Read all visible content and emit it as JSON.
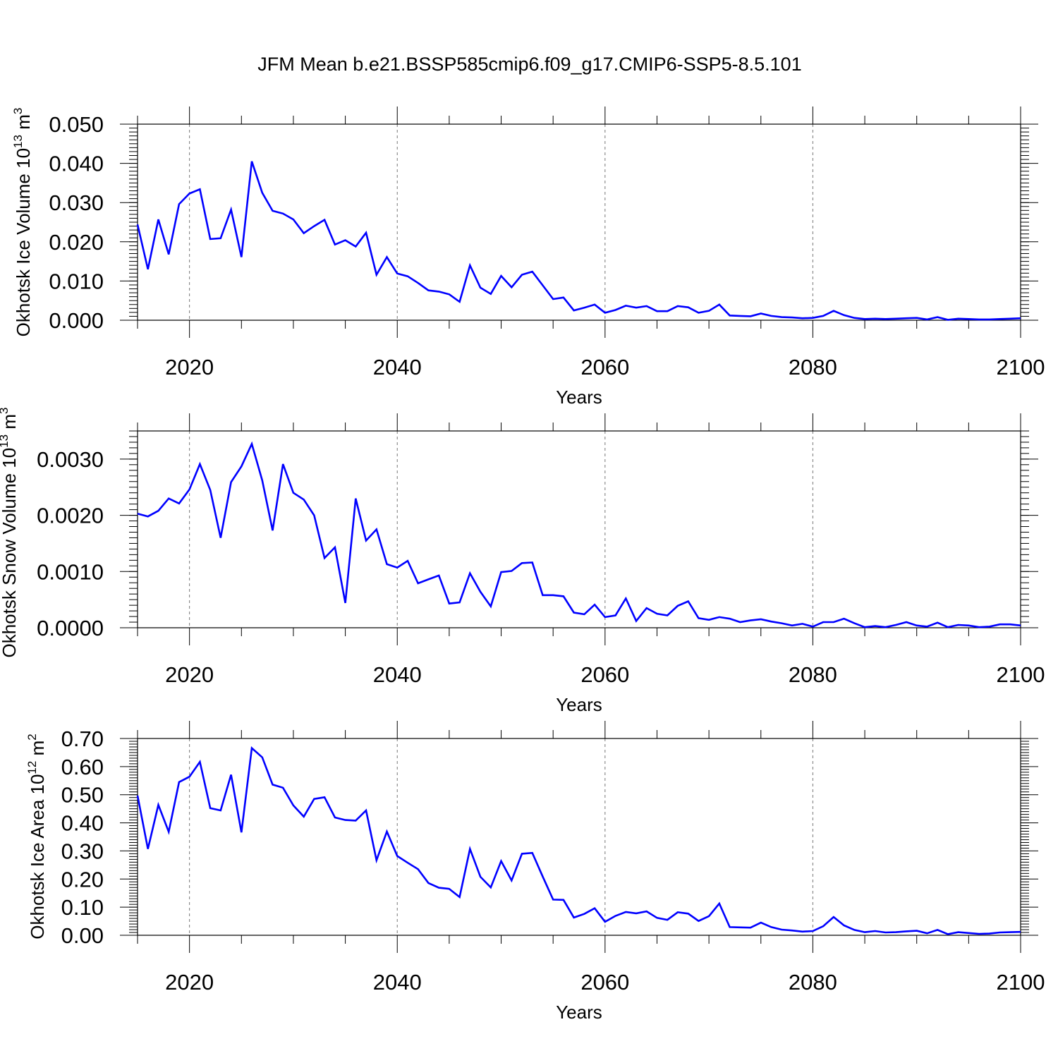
{
  "title": "JFM Mean b.e21.BSSP585cmip6.f09_g17.CMIP6-SSP5-8.5.101",
  "chart_data": [
    {
      "type": "line",
      "xlabel": "Years",
      "ylabel": "Okhotsk Ice Volume 10",
      "ylabel_exp": "13",
      "ylabel_unit": " m",
      "ylabel_unit_exp": "3",
      "xlim": [
        2015,
        2100
      ],
      "ylim": [
        0,
        0.05
      ],
      "xticks": [
        "2020",
        "2040",
        "2060",
        "2080",
        "2100"
      ],
      "yticks": [
        "0.000",
        "0.010",
        "0.020",
        "0.030",
        "0.040",
        "0.050"
      ],
      "grid": "dashed vertical at major x ticks",
      "series": [
        {
          "name": "Okhotsk Ice Volume",
          "color": "#0000ff",
          "x": [
            2015,
            2016,
            2017,
            2018,
            2019,
            2020,
            2021,
            2022,
            2023,
            2024,
            2025,
            2026,
            2027,
            2028,
            2029,
            2030,
            2031,
            2032,
            2033,
            2034,
            2035,
            2036,
            2037,
            2038,
            2039,
            2040,
            2041,
            2042,
            2043,
            2044,
            2045,
            2046,
            2047,
            2048,
            2049,
            2050,
            2051,
            2052,
            2053,
            2054,
            2055,
            2056,
            2057,
            2058,
            2059,
            2060,
            2061,
            2062,
            2063,
            2064,
            2065,
            2066,
            2067,
            2068,
            2069,
            2070,
            2071,
            2072,
            2073,
            2074,
            2075,
            2076,
            2077,
            2078,
            2079,
            2080,
            2081,
            2082,
            2083,
            2084,
            2085,
            2086,
            2087,
            2088,
            2089,
            2090,
            2091,
            2092,
            2093,
            2094,
            2095,
            2096,
            2097,
            2098,
            2099,
            2100
          ],
          "values": [
            0.0244,
            0.013,
            0.0257,
            0.0168,
            0.0296,
            0.0323,
            0.0334,
            0.0207,
            0.0209,
            0.0282,
            0.0161,
            0.0405,
            0.0325,
            0.0279,
            0.0272,
            0.0257,
            0.0222,
            0.024,
            0.0256,
            0.0193,
            0.0204,
            0.0188,
            0.0223,
            0.0116,
            0.0161,
            0.0119,
            0.0112,
            0.0095,
            0.0076,
            0.0073,
            0.0066,
            0.0047,
            0.014,
            0.0083,
            0.0067,
            0.0113,
            0.0084,
            0.0116,
            0.0124,
            0.0089,
            0.0054,
            0.0058,
            0.0025,
            0.0032,
            0.004,
            0.0019,
            0.0026,
            0.0037,
            0.0032,
            0.0036,
            0.0023,
            0.0023,
            0.0036,
            0.0033,
            0.0019,
            0.0024,
            0.004,
            0.0012,
            0.0011,
            0.001,
            0.0017,
            0.0011,
            0.0008,
            0.0007,
            0.0005,
            0.0006,
            0.0011,
            0.0024,
            0.0013,
            0.0006,
            0.0003,
            0.0004,
            0.0003,
            0.0004,
            0.0005,
            0.0006,
            0.0002,
            0.0008,
            0.0001,
            0.0004,
            0.0003,
            0.0002,
            0.0002,
            0.0003,
            0.0004,
            0.0005
          ]
        }
      ]
    },
    {
      "type": "line",
      "xlabel": "Years",
      "ylabel": "Okhotsk Snow Volume 10",
      "ylabel_exp": "13",
      "ylabel_unit": " m",
      "ylabel_unit_exp": "3",
      "xlim": [
        2015,
        2100
      ],
      "ylim": [
        0,
        0.0035
      ],
      "xticks": [
        "2020",
        "2040",
        "2060",
        "2080",
        "2100"
      ],
      "yticks": [
        "0.0000",
        "0.0010",
        "0.0020",
        "0.0030"
      ],
      "grid": "dashed vertical at major x ticks",
      "series": [
        {
          "name": "Okhotsk Snow Volume",
          "color": "#0000ff",
          "x": [
            2015,
            2016,
            2017,
            2018,
            2019,
            2020,
            2021,
            2022,
            2023,
            2024,
            2025,
            2026,
            2027,
            2028,
            2029,
            2030,
            2031,
            2032,
            2033,
            2034,
            2035,
            2036,
            2037,
            2038,
            2039,
            2040,
            2041,
            2042,
            2043,
            2044,
            2045,
            2046,
            2047,
            2048,
            2049,
            2050,
            2051,
            2052,
            2053,
            2054,
            2055,
            2056,
            2057,
            2058,
            2059,
            2060,
            2061,
            2062,
            2063,
            2064,
            2065,
            2066,
            2067,
            2068,
            2069,
            2070,
            2071,
            2072,
            2073,
            2074,
            2075,
            2076,
            2077,
            2078,
            2079,
            2080,
            2081,
            2082,
            2083,
            2084,
            2085,
            2086,
            2087,
            2088,
            2089,
            2090,
            2091,
            2092,
            2093,
            2094,
            2095,
            2096,
            2097,
            2098,
            2099,
            2100
          ],
          "values": [
            0.00203,
            0.00198,
            0.00208,
            0.0023,
            0.00221,
            0.00246,
            0.00291,
            0.00245,
            0.0016,
            0.00259,
            0.00287,
            0.00327,
            0.00262,
            0.00173,
            0.00291,
            0.0024,
            0.00228,
            0.002,
            0.00124,
            0.00143,
            0.00044,
            0.0023,
            0.00155,
            0.00175,
            0.00113,
            0.00107,
            0.00119,
            0.00079,
            0.00086,
            0.00093,
            0.00043,
            0.00045,
            0.00097,
            0.00064,
            0.00038,
            0.00099,
            0.00101,
            0.00115,
            0.00116,
            0.00058,
            0.00058,
            0.00056,
            0.00027,
            0.00024,
            0.00041,
            0.00019,
            0.00022,
            0.00052,
            0.00012,
            0.00035,
            0.00025,
            0.00022,
            0.00039,
            0.00047,
            0.00017,
            0.00014,
            0.00019,
            0.00016,
            0.0001,
            0.00013,
            0.00015,
            0.00011,
            8e-05,
            4e-05,
            7e-05,
            2e-05,
            0.0001,
            0.0001,
            0.00016,
            8e-05,
            1e-05,
            3e-05,
            1e-05,
            5e-05,
            0.0001,
            4e-05,
            2e-05,
            9e-05,
            1e-05,
            5e-05,
            4e-05,
            1e-05,
            2e-05,
            6e-05,
            6e-05,
            4e-05
          ]
        }
      ]
    },
    {
      "type": "line",
      "xlabel": "Years",
      "ylabel": "Okhotsk Ice Area 10",
      "ylabel_exp": "12",
      "ylabel_unit": " m",
      "ylabel_unit_exp": "2",
      "xlim": [
        2015,
        2100
      ],
      "ylim": [
        0,
        0.7
      ],
      "xticks": [
        "2020",
        "2040",
        "2060",
        "2080",
        "2100"
      ],
      "yticks": [
        "0.00",
        "0.10",
        "0.20",
        "0.30",
        "0.40",
        "0.50",
        "0.60",
        "0.70"
      ],
      "grid": "dashed vertical at major x ticks",
      "series": [
        {
          "name": "Okhotsk Ice Area",
          "color": "#0000ff",
          "x": [
            2015,
            2016,
            2017,
            2018,
            2019,
            2020,
            2021,
            2022,
            2023,
            2024,
            2025,
            2026,
            2027,
            2028,
            2029,
            2030,
            2031,
            2032,
            2033,
            2034,
            2035,
            2036,
            2037,
            2038,
            2039,
            2040,
            2041,
            2042,
            2043,
            2044,
            2045,
            2046,
            2047,
            2048,
            2049,
            2050,
            2051,
            2052,
            2053,
            2054,
            2055,
            2056,
            2057,
            2058,
            2059,
            2060,
            2061,
            2062,
            2063,
            2064,
            2065,
            2066,
            2067,
            2068,
            2069,
            2070,
            2071,
            2072,
            2073,
            2074,
            2075,
            2076,
            2077,
            2078,
            2079,
            2080,
            2081,
            2082,
            2083,
            2084,
            2085,
            2086,
            2087,
            2088,
            2089,
            2090,
            2091,
            2092,
            2093,
            2094,
            2095,
            2096,
            2097,
            2098,
            2099,
            2100
          ],
          "values": [
            0.497,
            0.307,
            0.464,
            0.368,
            0.545,
            0.564,
            0.617,
            0.452,
            0.444,
            0.571,
            0.366,
            0.666,
            0.633,
            0.536,
            0.525,
            0.462,
            0.422,
            0.485,
            0.491,
            0.419,
            0.41,
            0.408,
            0.444,
            0.267,
            0.369,
            0.282,
            0.258,
            0.235,
            0.186,
            0.169,
            0.165,
            0.136,
            0.307,
            0.208,
            0.17,
            0.264,
            0.195,
            0.29,
            0.293,
            0.209,
            0.127,
            0.126,
            0.063,
            0.076,
            0.096,
            0.048,
            0.069,
            0.083,
            0.078,
            0.085,
            0.062,
            0.055,
            0.082,
            0.077,
            0.051,
            0.068,
            0.113,
            0.029,
            0.028,
            0.027,
            0.045,
            0.029,
            0.02,
            0.017,
            0.013,
            0.015,
            0.032,
            0.065,
            0.035,
            0.019,
            0.011,
            0.015,
            0.01,
            0.011,
            0.014,
            0.016,
            0.007,
            0.019,
            0.004,
            0.011,
            0.008,
            0.005,
            0.006,
            0.01,
            0.011,
            0.012
          ]
        }
      ]
    }
  ]
}
